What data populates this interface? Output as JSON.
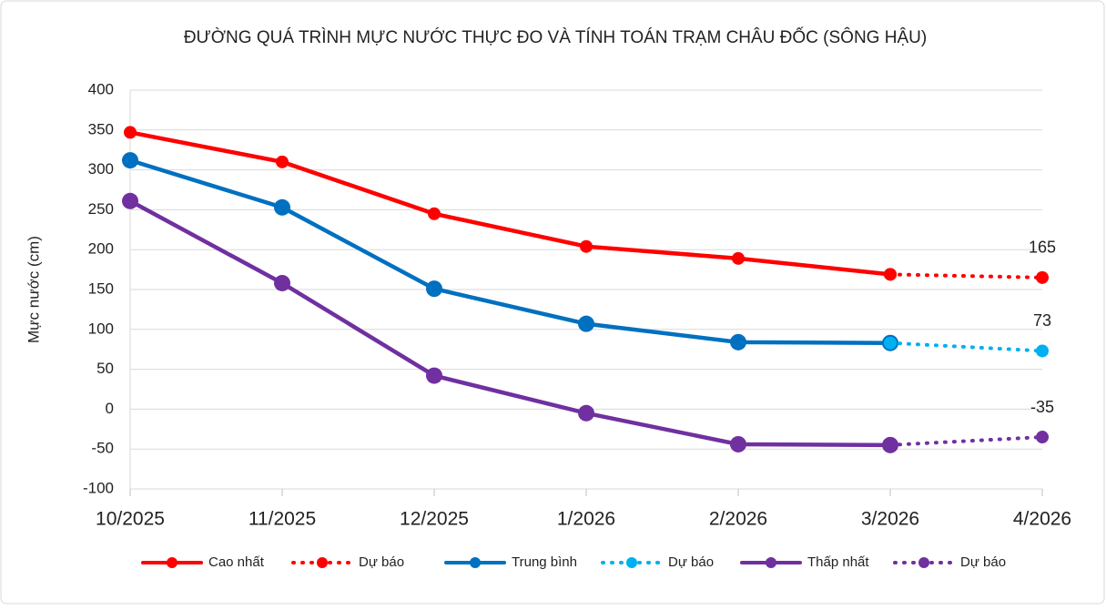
{
  "chart_data": {
    "type": "line",
    "title": "ĐƯỜNG QUÁ TRÌNH MỰC NƯỚC THỰC ĐO VÀ TÍNH TOÁN TRẠM CHÂU ĐỐC (SÔNG HẬU)",
    "y_label": "Mực nước (cm)",
    "categories": [
      "10/2025",
      "11/2025",
      "12/2025",
      "1/2026",
      "2/2026",
      "3/2026",
      "4/2026"
    ],
    "series": [
      {
        "name": "Cao nhất",
        "color": "#ff0000",
        "style": "solid",
        "values": [
          347,
          310,
          245,
          204,
          189,
          169,
          null
        ]
      },
      {
        "name": "Dự báo",
        "color": "#ff0000",
        "style": "dotted",
        "label_last": true,
        "values": [
          null,
          null,
          null,
          null,
          null,
          169,
          165
        ]
      },
      {
        "name": "Trung bình",
        "color": "#0070c0",
        "style": "solid",
        "values": [
          312,
          253,
          151,
          107,
          84,
          83,
          null
        ]
      },
      {
        "name": "Dự báo",
        "color": "#00b0f0",
        "style": "dotted",
        "label_last": true,
        "values": [
          null,
          null,
          null,
          null,
          null,
          83,
          73
        ]
      },
      {
        "name": "Thấp nhất",
        "color": "#7030a0",
        "style": "solid",
        "values": [
          261,
          158,
          42,
          -5,
          -44,
          -45,
          null
        ]
      },
      {
        "name": "Dự báo",
        "color": "#7030a0",
        "style": "dotted",
        "label_last": true,
        "values": [
          null,
          null,
          null,
          null,
          null,
          -45,
          -35
        ]
      }
    ],
    "ylim": [
      -100,
      400
    ],
    "yticks": [
      -100,
      -50,
      0,
      50,
      100,
      150,
      200,
      250,
      300,
      350,
      400
    ],
    "grid": true
  }
}
